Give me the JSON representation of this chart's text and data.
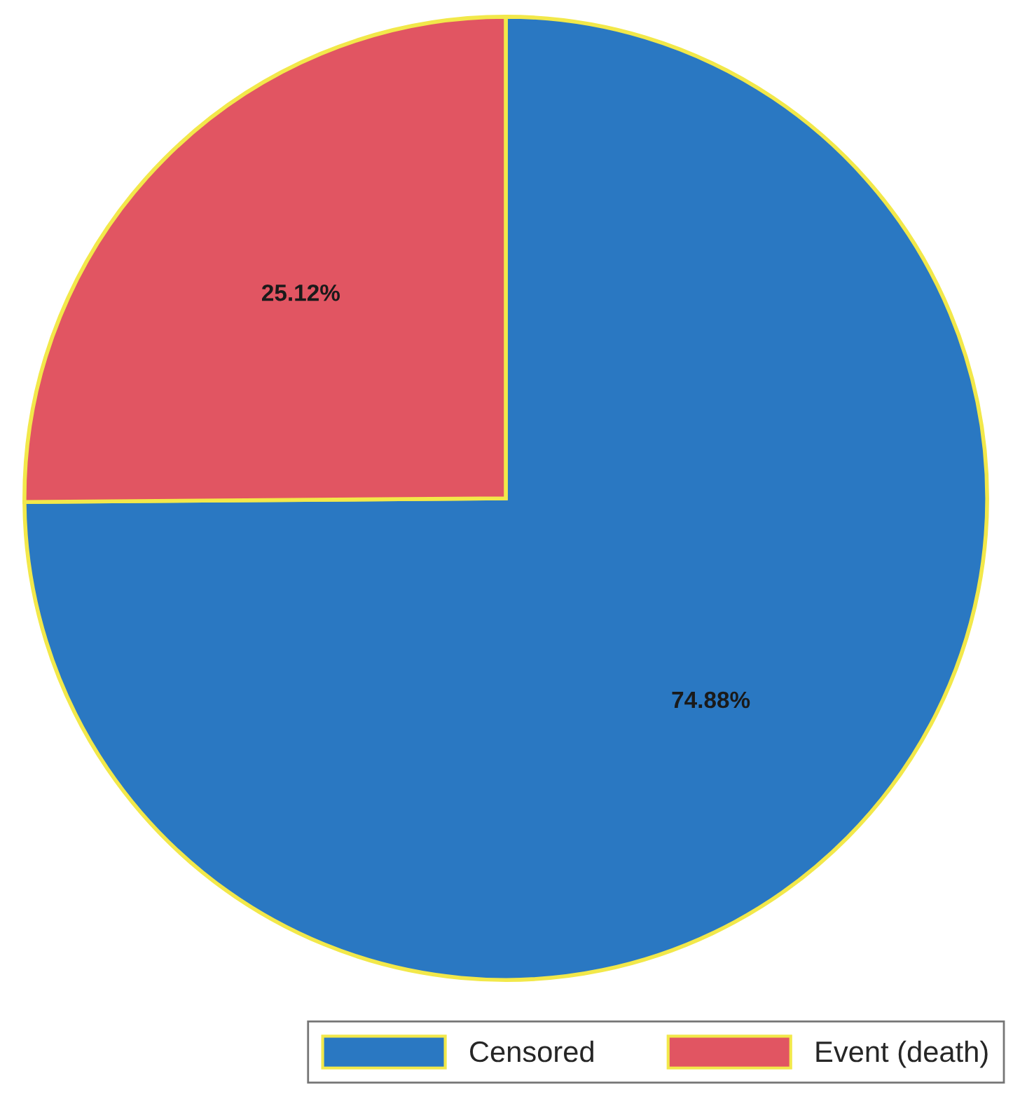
{
  "chart_data": {
    "type": "pie",
    "categories": [
      "Censored",
      "Event (death)"
    ],
    "values": [
      74.88,
      25.12
    ],
    "colors": [
      "#2a78c2",
      "#e15562"
    ],
    "value_labels": [
      "74.88%",
      "25.12%"
    ],
    "legend": "bottom right"
  }
}
